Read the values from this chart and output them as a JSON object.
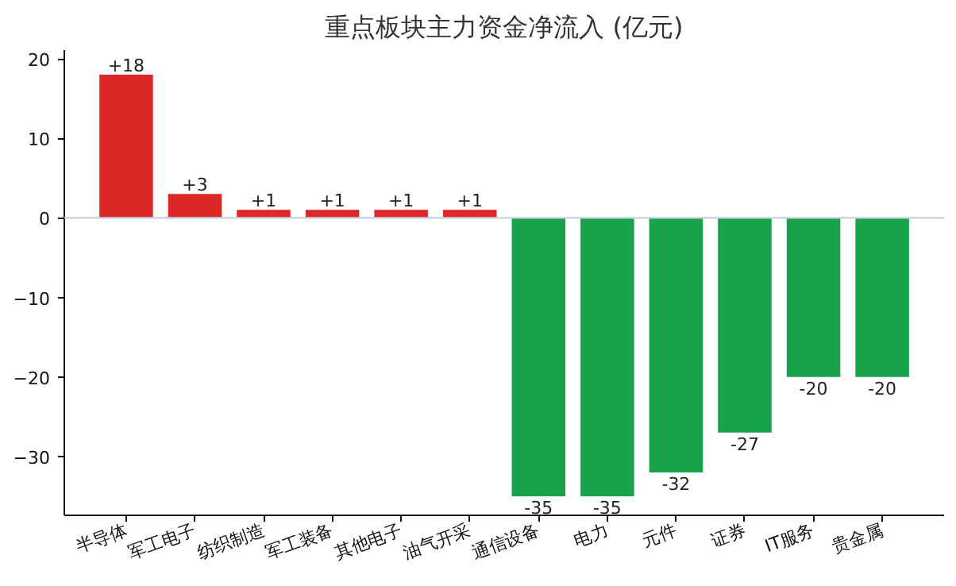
{
  "chart_data": {
    "type": "bar",
    "title": "重点板块主力资金净流入 (亿元)",
    "categories": [
      "半导体",
      "军工电子",
      "纺织制造",
      "军工装备",
      "其他电子",
      "油气开采",
      "通信设备",
      "电力",
      "元件",
      "证券",
      "IT服务",
      "贵金属"
    ],
    "values": [
      18,
      3,
      1,
      1,
      1,
      1,
      -35,
      -35,
      -32,
      -27,
      -20,
      -20
    ],
    "colors": [
      "#dd2626",
      "#dd2626",
      "#dd2626",
      "#dd2626",
      "#dd2626",
      "#dd2626",
      "#18a34a",
      "#18a34a",
      "#18a34a",
      "#18a34a",
      "#18a34a",
      "#18a34a"
    ],
    "value_labels": [
      "+18",
      "+3",
      "+1",
      "+1",
      "+1",
      "+1",
      "-35",
      "-35",
      "-32",
      "-27",
      "-20",
      "-20"
    ],
    "ylim": [
      -37.4,
      21.1
    ],
    "yticks": [
      -30,
      -20,
      -10,
      0,
      10,
      20
    ],
    "ref_lines": [
      {
        "axis": "y",
        "value": 0,
        "color": "#c8d0e0"
      }
    ],
    "grid": false
  }
}
